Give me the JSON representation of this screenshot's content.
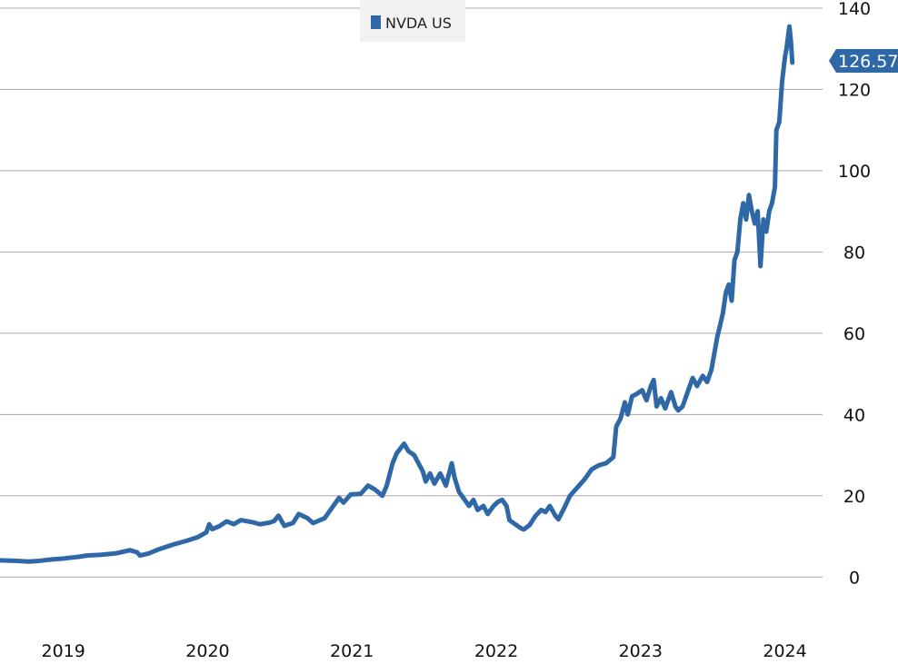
{
  "chart_data": {
    "type": "line",
    "legend": {
      "label": "NVDA US",
      "placement": "top"
    },
    "y_axis": {
      "position": "right",
      "ticks": [
        0,
        20,
        40,
        60,
        80,
        100,
        120,
        140
      ],
      "ylim": [
        -10,
        142
      ],
      "grid": true
    },
    "x_axis": {
      "tick_labels": [
        "2019",
        "2020",
        "2021",
        "2022",
        "2023",
        "2024"
      ],
      "ticks_at": [
        2019.0,
        2020.0,
        2021.0,
        2022.0,
        2023.0,
        2024.0
      ],
      "xlim": [
        2018.75,
        2024.45
      ]
    },
    "last_value_label": "126.57",
    "colors": {
      "line": "#2e68a6",
      "callout": "#2e68a6",
      "grid": "#a8a8a8"
    },
    "series": [
      {
        "values": [
          [
            2018.75,
            4.1
          ],
          [
            2018.85,
            4.0
          ],
          [
            2018.95,
            3.8
          ],
          [
            2019.0,
            3.9
          ],
          [
            2019.1,
            4.3
          ],
          [
            2019.2,
            4.6
          ],
          [
            2019.3,
            5.0
          ],
          [
            2019.35,
            5.3
          ],
          [
            2019.45,
            5.5
          ],
          [
            2019.55,
            5.8
          ],
          [
            2019.6,
            6.2
          ],
          [
            2019.65,
            6.6
          ],
          [
            2019.7,
            6.1
          ],
          [
            2019.72,
            5.3
          ],
          [
            2019.78,
            5.8
          ],
          [
            2019.85,
            6.8
          ],
          [
            2019.95,
            8.0
          ],
          [
            2020.05,
            9.0
          ],
          [
            2020.12,
            9.8
          ],
          [
            2020.18,
            11.0
          ],
          [
            2020.2,
            13.0
          ],
          [
            2020.22,
            11.8
          ],
          [
            2020.27,
            12.5
          ],
          [
            2020.32,
            13.7
          ],
          [
            2020.37,
            13.0
          ],
          [
            2020.42,
            14.0
          ],
          [
            2020.5,
            13.5
          ],
          [
            2020.55,
            13.0
          ],
          [
            2020.62,
            13.4
          ],
          [
            2020.65,
            13.8
          ],
          [
            2020.68,
            15.1
          ],
          [
            2020.72,
            12.6
          ],
          [
            2020.78,
            13.3
          ],
          [
            2020.82,
            15.5
          ],
          [
            2020.88,
            14.5
          ],
          [
            2020.92,
            13.3
          ],
          [
            2021.0,
            14.5
          ],
          [
            2021.05,
            17.0
          ],
          [
            2021.1,
            19.5
          ],
          [
            2021.13,
            18.3
          ],
          [
            2021.18,
            20.3
          ],
          [
            2021.25,
            20.5
          ],
          [
            2021.3,
            22.5
          ],
          [
            2021.35,
            21.5
          ],
          [
            2021.4,
            20.0
          ],
          [
            2021.43,
            22.5
          ],
          [
            2021.47,
            28.0
          ],
          [
            2021.5,
            30.5
          ],
          [
            2021.55,
            32.8
          ],
          [
            2021.58,
            31.0
          ],
          [
            2021.62,
            30.0
          ],
          [
            2021.65,
            28.0
          ],
          [
            2021.68,
            26.0
          ],
          [
            2021.7,
            23.5
          ],
          [
            2021.73,
            25.5
          ],
          [
            2021.76,
            23.0
          ],
          [
            2021.8,
            25.5
          ],
          [
            2021.84,
            22.5
          ],
          [
            2021.88,
            28.0
          ],
          [
            2021.9,
            24.5
          ],
          [
            2021.93,
            21.0
          ],
          [
            2021.96,
            19.5
          ],
          [
            2022.0,
            17.5
          ],
          [
            2022.03,
            19.0
          ],
          [
            2022.06,
            16.5
          ],
          [
            2022.1,
            17.5
          ],
          [
            2022.13,
            15.5
          ],
          [
            2022.17,
            17.5
          ],
          [
            2022.2,
            18.5
          ],
          [
            2022.23,
            19.0
          ],
          [
            2022.26,
            17.5
          ],
          [
            2022.28,
            14.0
          ],
          [
            2022.32,
            13.0
          ],
          [
            2022.36,
            12.0
          ],
          [
            2022.38,
            11.7
          ],
          [
            2022.42,
            12.8
          ],
          [
            2022.46,
            15.0
          ],
          [
            2022.5,
            16.5
          ],
          [
            2022.53,
            16.0
          ],
          [
            2022.56,
            17.5
          ],
          [
            2022.6,
            15.0
          ],
          [
            2022.62,
            14.2
          ],
          [
            2022.66,
            17.0
          ],
          [
            2022.7,
            20.0
          ],
          [
            2022.75,
            22.0
          ],
          [
            2022.8,
            24.0
          ],
          [
            2022.85,
            26.5
          ],
          [
            2022.9,
            27.5
          ],
          [
            2022.95,
            28.0
          ],
          [
            2023.0,
            29.5
          ],
          [
            2023.02,
            37.0
          ],
          [
            2023.05,
            39.0
          ],
          [
            2023.08,
            43.0
          ],
          [
            2023.1,
            40.0
          ],
          [
            2023.13,
            44.5
          ],
          [
            2023.16,
            45.0
          ],
          [
            2023.2,
            46.0
          ],
          [
            2023.23,
            43.5
          ],
          [
            2023.26,
            47.0
          ],
          [
            2023.28,
            48.5
          ],
          [
            2023.3,
            42.0
          ],
          [
            2023.33,
            44.0
          ],
          [
            2023.36,
            41.5
          ],
          [
            2023.4,
            45.5
          ],
          [
            2023.43,
            42.0
          ],
          [
            2023.45,
            41.0
          ],
          [
            2023.48,
            42.0
          ],
          [
            2023.52,
            46.0
          ],
          [
            2023.55,
            49.0
          ],
          [
            2023.58,
            47.0
          ],
          [
            2023.62,
            49.5
          ],
          [
            2023.65,
            48.0
          ],
          [
            2023.68,
            51.0
          ],
          [
            2023.7,
            55.0
          ],
          [
            2023.72,
            59.0
          ],
          [
            2023.74,
            62.0
          ],
          [
            2023.76,
            65.0
          ],
          [
            2023.78,
            70.0
          ],
          [
            2023.8,
            72.0
          ],
          [
            2023.82,
            68.0
          ],
          [
            2023.84,
            78.0
          ],
          [
            2023.86,
            80.0
          ],
          [
            2023.88,
            88.0
          ],
          [
            2023.9,
            92.0
          ],
          [
            2023.92,
            88.0
          ],
          [
            2023.94,
            94.0
          ],
          [
            2023.96,
            90.0
          ],
          [
            2023.98,
            87.0
          ],
          [
            2024.0,
            90.0
          ],
          [
            2024.02,
            76.5
          ],
          [
            2024.04,
            88.0
          ],
          [
            2024.06,
            85.0
          ],
          [
            2024.08,
            90.0
          ],
          [
            2024.1,
            92.0
          ],
          [
            2024.12,
            96.0
          ],
          [
            2024.13,
            110.0
          ],
          [
            2024.15,
            112.0
          ],
          [
            2024.17,
            122.0
          ],
          [
            2024.19,
            128.0
          ],
          [
            2024.2,
            130.0
          ],
          [
            2024.22,
            135.5
          ],
          [
            2024.23,
            132.0
          ],
          [
            2024.24,
            126.57
          ]
        ]
      }
    ]
  }
}
